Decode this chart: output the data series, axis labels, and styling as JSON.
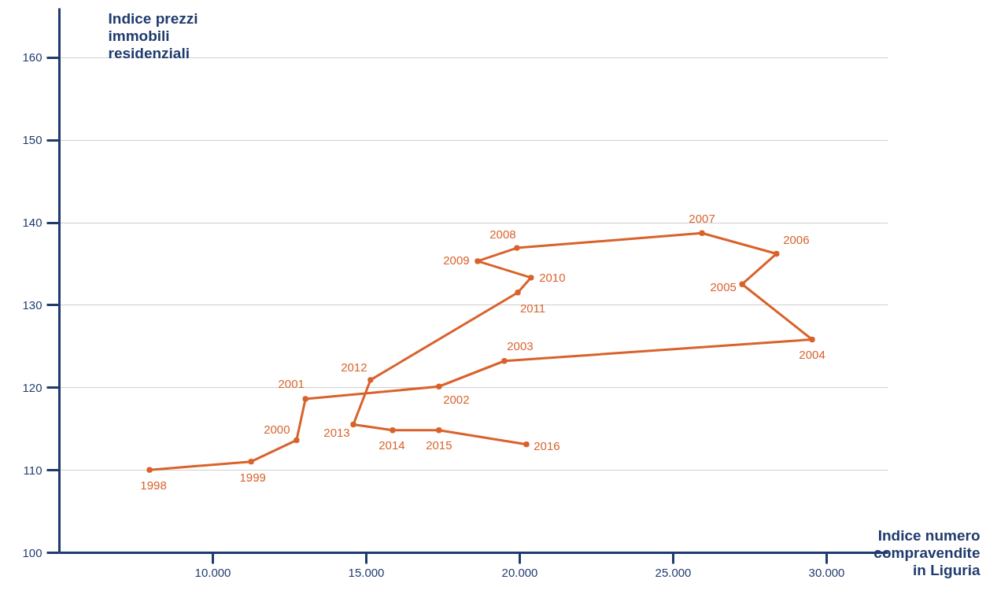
{
  "chart_data": {
    "type": "line",
    "xlabel": "Indice numero compravendite in Liguria",
    "ylabel": "Indice prezzi immobili residenziali",
    "x": [
      7950,
      11260,
      12740,
      13030,
      17380,
      19510,
      29540,
      27260,
      28380,
      25950,
      19920,
      18640,
      20380,
      19950,
      15150,
      14590,
      15870,
      17380,
      20230
    ],
    "values": [
      110.0,
      111.0,
      113.6,
      118.6,
      120.1,
      123.2,
      125.8,
      132.5,
      136.2,
      138.7,
      136.9,
      135.3,
      133.3,
      131.5,
      120.9,
      115.5,
      114.8,
      114.8,
      113.1
    ],
    "color": "#d9622b",
    "marker": "circle",
    "line_style": "solid",
    "grid": "y",
    "xlim": [
      5000,
      32000
    ],
    "ylim": [
      100,
      166
    ],
    "xticks": [
      {
        "value": 10000,
        "label": "10.000"
      },
      {
        "value": 15000,
        "label": "15.000"
      },
      {
        "value": 20000,
        "label": "20.000"
      },
      {
        "value": 25000,
        "label": "25.000"
      },
      {
        "value": 30000,
        "label": "30.000"
      }
    ],
    "yticks": [
      100,
      110,
      120,
      130,
      140,
      150,
      160
    ],
    "annotations": [
      {
        "text": "1998",
        "x": 7950,
        "y": 110.0
      },
      {
        "text": "1999",
        "x": 11260,
        "y": 111.0
      },
      {
        "text": "2000",
        "x": 12740,
        "y": 113.6
      },
      {
        "text": "2001",
        "x": 13030,
        "y": 118.6
      },
      {
        "text": "2002",
        "x": 17380,
        "y": 120.1
      },
      {
        "text": "2003",
        "x": 19510,
        "y": 123.2
      },
      {
        "text": "2004",
        "x": 29540,
        "y": 125.8
      },
      {
        "text": "2005",
        "x": 27260,
        "y": 132.5
      },
      {
        "text": "2006",
        "x": 28380,
        "y": 136.2
      },
      {
        "text": "2007",
        "x": 25950,
        "y": 138.7
      },
      {
        "text": "2008",
        "x": 19920,
        "y": 136.9
      },
      {
        "text": "2009",
        "x": 18640,
        "y": 135.3
      },
      {
        "text": "2010",
        "x": 20380,
        "y": 133.3
      },
      {
        "text": "2011",
        "x": 19950,
        "y": 131.5
      },
      {
        "text": "2012",
        "x": 15150,
        "y": 120.9
      },
      {
        "text": "2013",
        "x": 14590,
        "y": 115.5
      },
      {
        "text": "2014",
        "x": 15870,
        "y": 114.8
      },
      {
        "text": "2015",
        "x": 17380,
        "y": 114.8
      },
      {
        "text": "2016",
        "x": 20230,
        "y": 113.1
      }
    ]
  }
}
